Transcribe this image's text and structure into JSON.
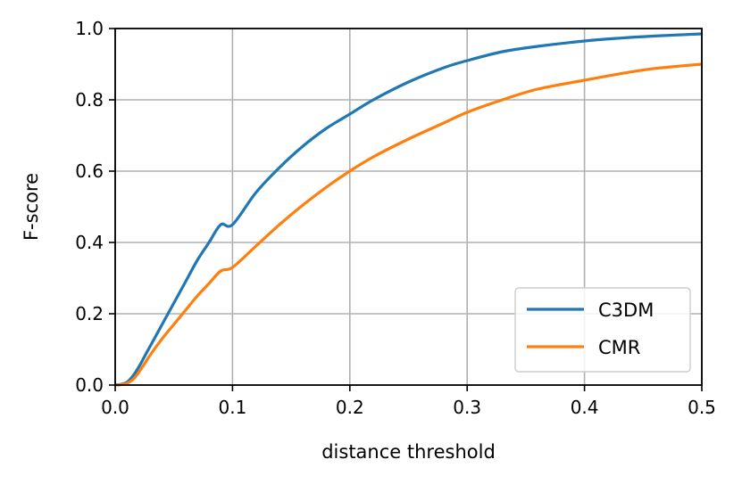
{
  "chart_data": {
    "type": "line",
    "title": "",
    "xlabel": "distance threshold",
    "ylabel": "F-score",
    "xlim": [
      0,
      0.5
    ],
    "ylim": [
      0,
      1.0
    ],
    "xticks": [
      "0.0",
      "0.1",
      "0.2",
      "0.3",
      "0.4",
      "0.5"
    ],
    "yticks": [
      "0.0",
      "0.2",
      "0.4",
      "0.6",
      "0.8",
      "1.0"
    ],
    "grid": true,
    "legend_position": "bottom-right",
    "series": [
      {
        "name": "C3DM",
        "color": "#1f77b4",
        "x": [
          0,
          0.005,
          0.01,
          0.015,
          0.02,
          0.025,
          0.03,
          0.04,
          0.05,
          0.06,
          0.07,
          0.08,
          0.09,
          0.1,
          0.12,
          0.14,
          0.16,
          0.18,
          0.2,
          0.22,
          0.25,
          0.28,
          0.3,
          0.33,
          0.36,
          0.4,
          0.43,
          0.46,
          0.5
        ],
        "y": [
          0,
          0.002,
          0.008,
          0.025,
          0.05,
          0.08,
          0.11,
          0.17,
          0.23,
          0.29,
          0.35,
          0.4,
          0.45,
          0.45,
          0.54,
          0.61,
          0.67,
          0.72,
          0.76,
          0.8,
          0.85,
          0.89,
          0.91,
          0.935,
          0.95,
          0.965,
          0.973,
          0.979,
          0.985
        ]
      },
      {
        "name": "CMR",
        "color": "#ff7f0e",
        "x": [
          0,
          0.005,
          0.01,
          0.015,
          0.02,
          0.025,
          0.03,
          0.04,
          0.05,
          0.06,
          0.07,
          0.08,
          0.09,
          0.1,
          0.12,
          0.14,
          0.16,
          0.18,
          0.2,
          0.22,
          0.25,
          0.28,
          0.3,
          0.33,
          0.36,
          0.4,
          0.43,
          0.46,
          0.5
        ],
        "y": [
          0,
          0.001,
          0.005,
          0.015,
          0.035,
          0.06,
          0.085,
          0.13,
          0.17,
          0.21,
          0.25,
          0.285,
          0.32,
          0.33,
          0.39,
          0.45,
          0.505,
          0.555,
          0.6,
          0.64,
          0.69,
          0.735,
          0.765,
          0.8,
          0.83,
          0.855,
          0.873,
          0.888,
          0.9
        ]
      }
    ]
  }
}
